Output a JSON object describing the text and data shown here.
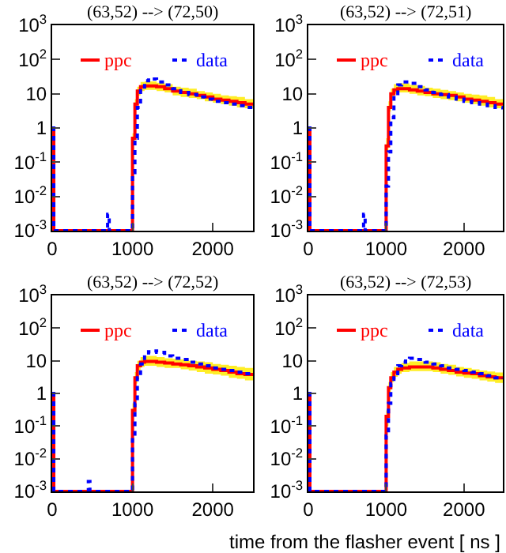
{
  "chart_data": [
    {
      "type": "step",
      "title": "(63,52) --> (72,50)",
      "log": "y",
      "legend": "top",
      "xlim": [
        0,
        2500
      ],
      "xticks": [
        0,
        1000,
        2000
      ],
      "ylim": [
        0.001,
        1000
      ],
      "yticks": [
        {
          "value": 1000,
          "label": "10$^{3}$"
        },
        {
          "value": 100,
          "label": "10$^{2}$"
        },
        {
          "value": 10,
          "label": "10"
        },
        {
          "value": 1,
          "label": "1"
        },
        {
          "value": 0.1,
          "label": "10$^{-1}$"
        },
        {
          "value": 0.01,
          "label": "10$^{-2}$"
        },
        {
          "value": 0.001,
          "label": "10$^{-3}$"
        }
      ],
      "series": [
        {
          "name": "ppc",
          "color": "#ff0000",
          "line_style": "solid",
          "x": [
            0,
            20,
            1000,
            1030,
            1060,
            1100,
            1150,
            1200,
            1300,
            1400,
            1500,
            1600,
            1700,
            1800,
            1900,
            2000,
            2100,
            2200,
            2300,
            2400,
            2500
          ],
          "values": [
            1,
            0.001,
            0.5,
            5,
            12,
            16,
            17,
            17,
            16,
            14,
            12,
            11,
            10,
            9,
            8,
            7,
            6.5,
            6,
            5.5,
            5,
            4.5
          ],
          "lower": [
            null,
            null,
            0.4,
            4,
            9,
            12,
            13,
            13,
            12,
            11,
            9,
            8,
            7.5,
            7,
            6,
            5.5,
            5,
            4.5,
            4,
            3.8,
            3.5
          ],
          "upper": [
            null,
            null,
            0.7,
            7,
            16,
            22,
            23,
            23,
            21,
            19,
            16,
            15,
            14,
            12,
            11,
            10,
            9,
            8.5,
            8,
            7,
            6.5
          ]
        },
        {
          "name": "data",
          "color": "#0000ff",
          "line_style": "dotted",
          "x": [
            0,
            20,
            690,
            710,
            1000,
            1030,
            1060,
            1100,
            1150,
            1200,
            1250,
            1300,
            1400,
            1500,
            1600,
            1700,
            1800,
            1900,
            2000,
            2100,
            2200,
            2300,
            2400,
            2500
          ],
          "values": [
            1,
            0.001,
            0.003,
            0.001,
            0.05,
            0.5,
            4,
            14,
            24,
            28,
            27,
            22,
            18,
            14,
            11,
            9.5,
            8,
            7,
            6,
            5.5,
            5,
            4.5,
            4,
            3.5
          ]
        }
      ]
    },
    {
      "type": "step",
      "title": "(63,52) --> (72,51)",
      "log": "y",
      "legend": "top",
      "xlim": [
        0,
        2500
      ],
      "xticks": [
        0,
        1000,
        2000
      ],
      "ylim": [
        0.001,
        1000
      ],
      "yticks": [
        {
          "value": 1000,
          "label": "10$^{3}$"
        },
        {
          "value": 100,
          "label": "10$^{2}$"
        },
        {
          "value": 10,
          "label": "10"
        },
        {
          "value": 1,
          "label": "1"
        },
        {
          "value": 0.1,
          "label": "10$^{-1}$"
        },
        {
          "value": 0.01,
          "label": "10$^{-2}$"
        },
        {
          "value": 0.001,
          "label": "10$^{-3}$"
        }
      ],
      "series": [
        {
          "name": "ppc",
          "color": "#ff0000",
          "line_style": "solid",
          "x": [
            0,
            20,
            1000,
            1030,
            1060,
            1100,
            1150,
            1200,
            1300,
            1400,
            1500,
            1600,
            1700,
            1800,
            1900,
            2000,
            2100,
            2200,
            2300,
            2400,
            2500
          ],
          "values": [
            1,
            0.001,
            0.3,
            4,
            10,
            13,
            14,
            14,
            13,
            12,
            11,
            10,
            9.5,
            9,
            8,
            7,
            6.5,
            6,
            5.5,
            5,
            4.5
          ],
          "lower": [
            null,
            null,
            0.2,
            3,
            7.5,
            10,
            11,
            11,
            10,
            9,
            8.5,
            7.5,
            7,
            6.5,
            6,
            5.5,
            5,
            4.5,
            4,
            3.8,
            3.5
          ],
          "upper": [
            null,
            null,
            0.5,
            6,
            14,
            19,
            20,
            20,
            18,
            17,
            15,
            14,
            13,
            12,
            11,
            10,
            9.5,
            9,
            8,
            7,
            6.5
          ]
        },
        {
          "name": "data",
          "color": "#0000ff",
          "line_style": "dotted",
          "x": [
            0,
            20,
            710,
            730,
            1000,
            1030,
            1060,
            1100,
            1150,
            1200,
            1250,
            1300,
            1400,
            1500,
            1600,
            1700,
            1800,
            1900,
            2000,
            2100,
            2200,
            2300,
            2400,
            2500
          ],
          "values": [
            1,
            0.001,
            0.003,
            0.001,
            0.02,
            0.2,
            2,
            9,
            18,
            22,
            22,
            20,
            16,
            13,
            11,
            9.5,
            8,
            7,
            6,
            5.5,
            5,
            4.5,
            4,
            3.5
          ]
        }
      ]
    },
    {
      "type": "step",
      "title": "(63,52) --> (72,52)",
      "log": "y",
      "legend": "top",
      "xlim": [
        0,
        2500
      ],
      "xticks": [
        0,
        1000,
        2000
      ],
      "ylim": [
        0.001,
        1000
      ],
      "yticks": [
        {
          "value": 1000,
          "label": "10$^{3}$"
        },
        {
          "value": 100,
          "label": "10$^{2}$"
        },
        {
          "value": 10,
          "label": "10"
        },
        {
          "value": 1,
          "label": "1"
        },
        {
          "value": 0.1,
          "label": "10$^{-1}$"
        },
        {
          "value": 0.01,
          "label": "10$^{-2}$"
        },
        {
          "value": 0.001,
          "label": "10$^{-3}$"
        }
      ],
      "series": [
        {
          "name": "ppc",
          "color": "#ff0000",
          "line_style": "solid",
          "x": [
            0,
            20,
            1000,
            1030,
            1060,
            1100,
            1150,
            1200,
            1300,
            1400,
            1500,
            1600,
            1700,
            1800,
            1900,
            2000,
            2100,
            2200,
            2300,
            2400,
            2500
          ],
          "values": [
            1,
            0.001,
            0.3,
            3,
            7,
            9,
            9.5,
            9.5,
            9,
            8.5,
            8,
            7.5,
            7,
            6.5,
            6,
            5.5,
            5,
            4.5,
            4,
            3.8,
            3.5
          ],
          "lower": [
            null,
            null,
            0.2,
            2,
            5,
            6.5,
            7,
            7,
            6.5,
            6,
            6,
            5.5,
            5,
            4.5,
            4,
            3.8,
            3.5,
            3,
            2.8,
            2.5,
            2.3
          ],
          "upper": [
            null,
            null,
            0.5,
            4.5,
            10,
            13,
            14,
            14,
            13,
            12,
            11.5,
            11,
            10,
            9.5,
            9,
            8,
            7.5,
            7,
            6.5,
            6,
            5.5
          ]
        },
        {
          "name": "data",
          "color": "#0000ff",
          "line_style": "dotted",
          "x": [
            0,
            20,
            450,
            470,
            1000,
            1030,
            1060,
            1100,
            1150,
            1200,
            1250,
            1300,
            1400,
            1500,
            1600,
            1700,
            1800,
            1900,
            2000,
            2100,
            2200,
            2300,
            2400,
            2500
          ],
          "values": [
            1,
            0.001,
            0.002,
            0.001,
            0.05,
            0.5,
            3,
            8,
            15,
            19,
            20,
            18,
            14,
            12,
            11,
            9,
            8,
            7,
            6,
            5.5,
            5,
            4.5,
            4,
            3.5
          ]
        }
      ]
    },
    {
      "type": "step",
      "title": "(63,52) --> (72,53)",
      "log": "y",
      "legend": "top",
      "xlim": [
        0,
        2500
      ],
      "xticks": [
        0,
        1000,
        2000
      ],
      "ylim": [
        0.001,
        1000
      ],
      "yticks": [
        {
          "value": 1000,
          "label": "10$^{3}$"
        },
        {
          "value": 100,
          "label": "10$^{2}$"
        },
        {
          "value": 10,
          "label": "10"
        },
        {
          "value": 1,
          "label": "1"
        },
        {
          "value": 0.1,
          "label": "10$^{-1}$"
        },
        {
          "value": 0.01,
          "label": "10$^{-2}$"
        },
        {
          "value": 0.001,
          "label": "10$^{-3}$"
        }
      ],
      "xlabel": "time from the flasher event [ ns ]",
      "series": [
        {
          "name": "ppc",
          "color": "#ff0000",
          "line_style": "solid",
          "x": [
            0,
            20,
            1000,
            1030,
            1060,
            1100,
            1150,
            1200,
            1300,
            1400,
            1500,
            1600,
            1700,
            1800,
            1900,
            2000,
            2100,
            2200,
            2300,
            2400,
            2500
          ],
          "values": [
            1,
            0.001,
            0.2,
            1.5,
            3,
            4.5,
            5.5,
            6,
            6.5,
            6.5,
            6.5,
            6,
            5.5,
            5,
            4.5,
            4.2,
            4,
            3.5,
            3.2,
            3,
            2.8
          ],
          "lower": [
            null,
            null,
            0.1,
            1,
            2.2,
            3.2,
            4,
            4.5,
            4.8,
            4.8,
            4.8,
            4.5,
            4,
            3.7,
            3.3,
            3,
            2.8,
            2.5,
            2.3,
            2.1,
            2
          ],
          "upper": [
            null,
            null,
            0.3,
            2.2,
            4.5,
            6.5,
            8,
            8.5,
            9.5,
            9.5,
            9.5,
            9,
            8,
            7.5,
            6.5,
            6,
            5.5,
            5,
            4.7,
            4.4,
            4
          ]
        },
        {
          "name": "data",
          "color": "#0000ff",
          "line_style": "dotted",
          "x": [
            0,
            20,
            1000,
            1030,
            1060,
            1100,
            1150,
            1200,
            1250,
            1300,
            1350,
            1400,
            1500,
            1600,
            1700,
            1800,
            1900,
            2000,
            2100,
            2200,
            2300,
            2400,
            2500
          ],
          "values": [
            1,
            0.001,
            0.05,
            0.5,
            2,
            4,
            7,
            9,
            11,
            12,
            12,
            11,
            9,
            8,
            7,
            6,
            5.5,
            5,
            4.5,
            4,
            3.5,
            3,
            2.8
          ]
        }
      ]
    }
  ]
}
